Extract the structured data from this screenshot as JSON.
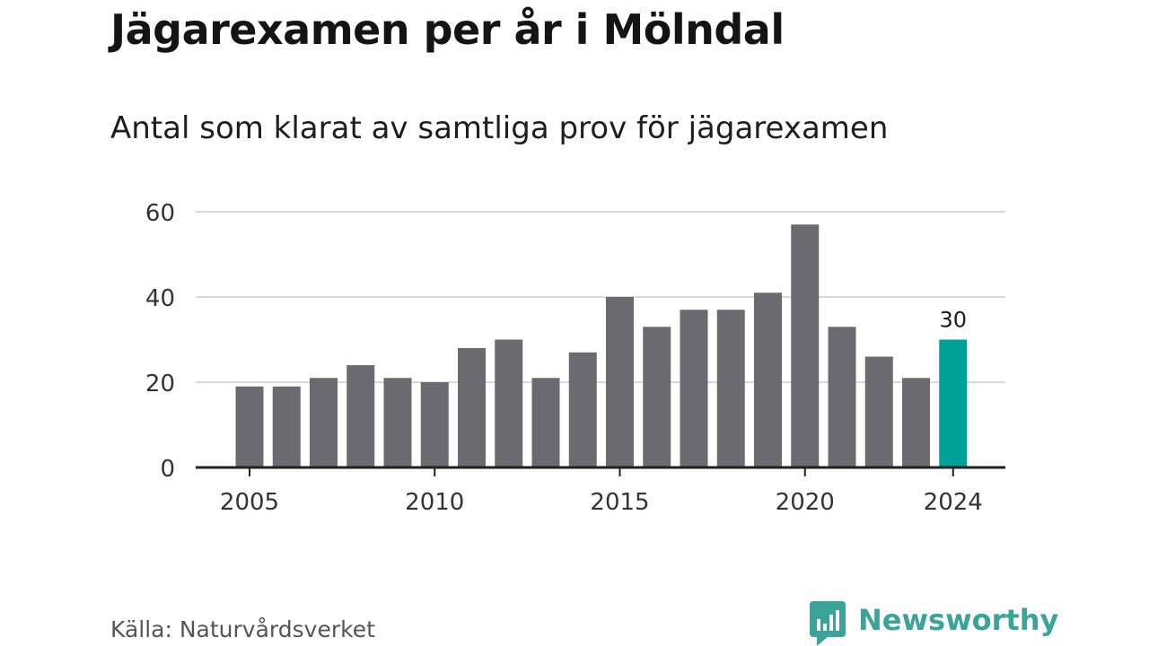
{
  "header": {
    "title": "Jägarexamen per år i Mölndal",
    "subtitle": "Antal som klarat av samtliga prov för jägarexamen"
  },
  "footer": {
    "source": "Källa: Naturvårdsverket",
    "brand": "Newsworthy",
    "brand_icon": "chat-bar-chart-icon"
  },
  "colors": {
    "bar": "#6b6a70",
    "highlight": "#00a096",
    "brand": "#3aa39a",
    "grid": "#d9d9d9",
    "axis": "#222222"
  },
  "chart_data": {
    "type": "bar",
    "categories": [
      "2005",
      "2006",
      "2007",
      "2008",
      "2009",
      "2010",
      "2011",
      "2012",
      "2013",
      "2014",
      "2015",
      "2016",
      "2017",
      "2018",
      "2019",
      "2020",
      "2021",
      "2022",
      "2023",
      "2024"
    ],
    "values": [
      19,
      19,
      21,
      24,
      21,
      20,
      28,
      30,
      21,
      27,
      40,
      33,
      37,
      37,
      41,
      57,
      33,
      26,
      21,
      30
    ],
    "x_tick_labels": [
      "2005",
      "2010",
      "2015",
      "2020",
      "2024"
    ],
    "y_ticks": [
      0,
      20,
      40,
      60
    ],
    "ylim": [
      0,
      60
    ],
    "highlight": {
      "category": "2024",
      "label": "30"
    },
    "grid": true
  }
}
